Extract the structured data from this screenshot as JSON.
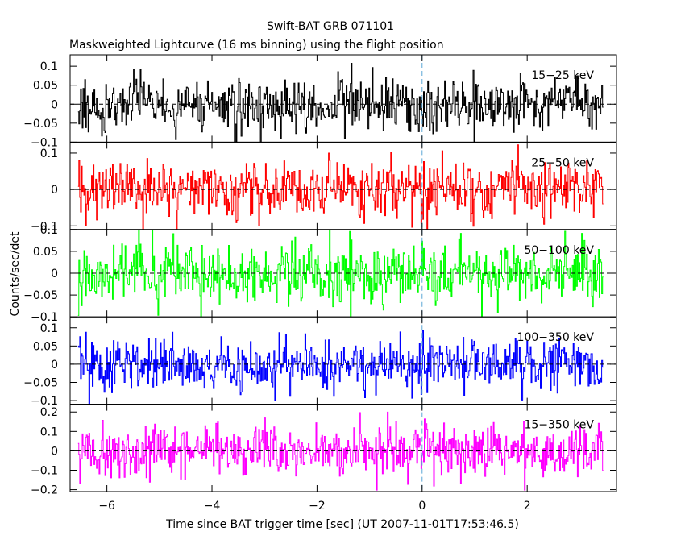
{
  "chart_data": {
    "type": "line",
    "title": "Swift-BAT GRB 071101",
    "subtitle": "Maskweighted Lightcurve (16 ms binning) using the flight position",
    "xlabel": "Time since BAT trigger time [sec] (UT 2007-11-01T17:53:46.5)",
    "ylabel": "Counts/sec/det",
    "xlim": [
      -6.7,
      3.7
    ],
    "xticks": [
      -6,
      -4,
      -2,
      0,
      2
    ],
    "xtick_labels": [
      "−6",
      "−4",
      "−2",
      "0",
      "2"
    ],
    "data_x_range": [
      -6.55,
      3.45
    ],
    "bin_width_sec": 0.016,
    "trigger_marker_x": 0,
    "panels": [
      {
        "band": "15−25 keV",
        "color": "#000000",
        "ylim": [
          -0.1,
          0.13
        ],
        "yticks": [
          -0.1,
          -0.05,
          0,
          0.05,
          0.1
        ],
        "ytick_labels": [
          "−0.1",
          "−0.05",
          "0",
          "0.05",
          "0.1"
        ],
        "noise_sigma": 0.035
      },
      {
        "band": "25−50 keV",
        "color": "#ff0000",
        "ylim": [
          -0.11,
          0.13
        ],
        "yticks": [
          -0.1,
          0,
          0.1
        ],
        "ytick_labels": [
          "−0.1",
          "0",
          "0.1"
        ],
        "noise_sigma": 0.04
      },
      {
        "band": "50−100 keV",
        "color": "#00ff00",
        "ylim": [
          -0.1,
          0.1
        ],
        "yticks": [
          -0.1,
          -0.05,
          0,
          0.05,
          0.1
        ],
        "ytick_labels": [
          "−0.1",
          "−0.05",
          "0",
          "0.05",
          "0.1"
        ],
        "noise_sigma": 0.035
      },
      {
        "band": "100−350 keV",
        "color": "#0000ff",
        "ylim": [
          -0.11,
          0.13
        ],
        "yticks": [
          -0.1,
          -0.05,
          0,
          0.05,
          0.1
        ],
        "ytick_labels": [
          "−0.1",
          "−0.05",
          "0",
          "0.05",
          "0.1"
        ],
        "noise_sigma": 0.035
      },
      {
        "band": "15−350 keV",
        "color": "#ff00ff",
        "ylim": [
          -0.21,
          0.24
        ],
        "yticks": [
          -0.2,
          -0.1,
          0,
          0.1,
          0.2
        ],
        "ytick_labels": [
          "−0.2",
          "−0.1",
          "0",
          "0.1",
          "0.2"
        ],
        "noise_sigma": 0.07
      }
    ]
  }
}
